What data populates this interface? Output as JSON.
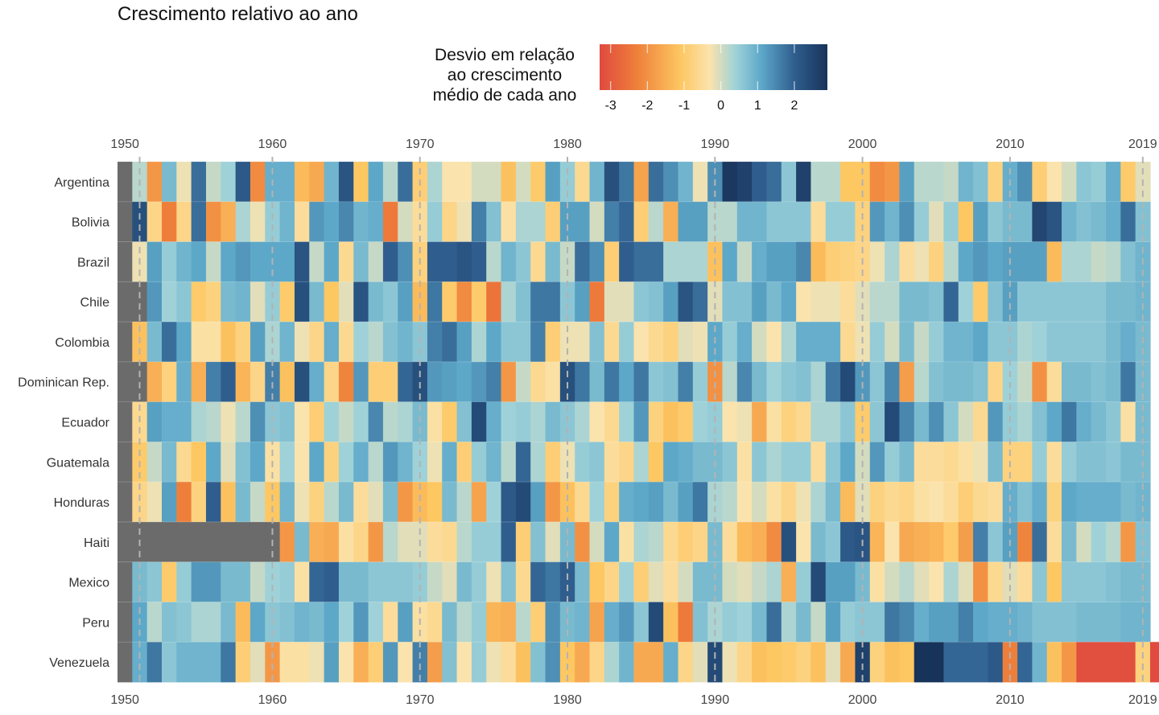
{
  "chart_data": {
    "type": "heatmap",
    "title": "Crescimento relativo ao ano",
    "legend": {
      "title_lines": [
        "Desvio em relação",
        "ao crescimento",
        "médio de cada ano"
      ],
      "ticks": [
        -3,
        -2,
        -1,
        0,
        1,
        2
      ],
      "range": [
        -3.3,
        2.9
      ],
      "colors": [
        "#e04a3f",
        "#ee7f3a",
        "#fdc762",
        "#fbe3ad",
        "#9fd2d8",
        "#5da8c9",
        "#2f5e8e",
        "#17335a"
      ],
      "placement": "top-center"
    },
    "na_color": "#6b6b6b",
    "x_ticks": [
      1950,
      1960,
      1970,
      1980,
      1990,
      2000,
      2010,
      2019
    ],
    "years_start": 1950,
    "years_end": 2019,
    "rows": [
      {
        "country": "Argentina",
        "values": [
          null,
          0.2,
          -1.9,
          0.8,
          -0.2,
          1.8,
          0.1,
          0.4,
          2.1,
          -2.1,
          1.0,
          1.0,
          -1.3,
          -1.6,
          0.9,
          2.2,
          -1.1,
          1.1,
          0.2,
          1.8,
          -0.9,
          0.3,
          -0.3,
          -0.3,
          0.0,
          0.0,
          -1.2,
          0.0,
          -1.0,
          1.2,
          0.5,
          -0.6,
          0.9,
          2.3,
          1.7,
          -1.7,
          1.8,
          1.4,
          0.9,
          -0.2,
          1.4,
          2.8,
          2.6,
          2.0,
          1.8,
          0.6,
          2.6,
          0.2,
          0.2,
          -1.1,
          -1.1,
          -2.1,
          -1.9,
          1.2,
          0.2,
          0.2,
          0.1,
          0.9,
          0.7,
          -0.8,
          1.0,
          1.4,
          -0.9,
          -0.3,
          0.0,
          0.6,
          0.5,
          1.0,
          -1.0,
          -0.1
        ]
      },
      {
        "country": "Bolivia",
        "values": [
          null,
          2.3,
          -0.7,
          -2.3,
          -0.7,
          1.8,
          -2.0,
          -1.5,
          0.3,
          -0.2,
          0.5,
          0.9,
          -0.5,
          1.3,
          1.1,
          1.5,
          0.9,
          1.0,
          -2.4,
          0.0,
          -0.5,
          0.5,
          -0.7,
          -0.2,
          1.6,
          0.7,
          -0.4,
          0.3,
          0.3,
          -0.9,
          1.2,
          1.2,
          0.0,
          1.6,
          1.9,
          -0.9,
          0.2,
          -1.5,
          1.2,
          1.2,
          0.2,
          0.2,
          0.9,
          0.9,
          0.6,
          0.6,
          0.6,
          -0.5,
          0.5,
          0.5,
          -0.8,
          1.3,
          0.9,
          1.4,
          0.5,
          -0.1,
          0.5,
          -1.1,
          1.2,
          0.6,
          0.8,
          0.8,
          2.5,
          2.2,
          0.9,
          0.7,
          0.8,
          1.0,
          1.8,
          0.7
        ]
      },
      {
        "country": "Brazil",
        "values": [
          null,
          -0.2,
          1.2,
          0.5,
          0.9,
          1.1,
          0.1,
          1.1,
          1.3,
          1.1,
          1.1,
          1.1,
          2.2,
          0.1,
          1.1,
          -0.6,
          0.8,
          0.1,
          2.0,
          1.4,
          -0.8,
          2.0,
          2.0,
          2.2,
          2.0,
          0.2,
          0.9,
          0.6,
          -0.6,
          0.8,
          0.1,
          1.8,
          1.4,
          -0.9,
          2.0,
          1.8,
          1.8,
          0.3,
          0.3,
          0.3,
          -1.2,
          1.1,
          0.1,
          1.0,
          1.2,
          1.2,
          1.5,
          -1.3,
          -0.9,
          -0.8,
          -0.7,
          -0.2,
          0.3,
          -0.5,
          -0.2,
          -0.8,
          0.2,
          1.1,
          1.3,
          1.1,
          1.2,
          1.2,
          1.2,
          -1.3,
          0.3,
          0.3,
          0.1,
          0.2,
          0.7,
          0.9
        ]
      },
      {
        "country": "Chile",
        "values": [
          null,
          null,
          1.3,
          0.4,
          0.6,
          -1.0,
          -0.8,
          0.8,
          0.9,
          -0.1,
          0.5,
          -1.0,
          2.3,
          0.8,
          -1.1,
          -0.1,
          2.2,
          0.8,
          0.6,
          1.2,
          -1.3,
          1.7,
          -1.0,
          -2.1,
          -1.0,
          -2.5,
          0.3,
          0.7,
          1.7,
          1.7,
          0.6,
          1.2,
          -2.4,
          -0.1,
          -0.1,
          0.6,
          0.7,
          1.2,
          2.2,
          1.8,
          -0.1,
          0.7,
          0.7,
          1.2,
          0.8,
          1.1,
          -0.3,
          -0.2,
          -0.2,
          -0.5,
          -0.1,
          0.2,
          0.2,
          0.8,
          0.8,
          0.7,
          1.9,
          0.4,
          -1.0,
          0.7,
          1.2,
          0.6,
          0.6,
          0.6,
          0.6,
          0.6,
          0.6,
          0.8,
          0.8,
          0.9
        ]
      },
      {
        "country": "Colombia",
        "values": [
          null,
          -1.2,
          0.8,
          1.8,
          1.1,
          -0.4,
          -0.4,
          -1.2,
          -0.8,
          1.2,
          0.3,
          0.9,
          -0.2,
          -0.7,
          1.0,
          -0.6,
          0.4,
          0.2,
          0.7,
          0.9,
          0.6,
          1.6,
          1.8,
          1.2,
          0.3,
          1.1,
          0.6,
          0.6,
          1.6,
          -0.9,
          -0.2,
          -0.2,
          0.7,
          -0.6,
          0.5,
          -0.3,
          -0.6,
          -0.8,
          -0.1,
          -0.2,
          1.1,
          0.5,
          1.0,
          0.0,
          -0.3,
          0.3,
          1.0,
          1.0,
          1.0,
          -0.6,
          -0.2,
          0.5,
          0.0,
          0.8,
          0.1,
          0.5,
          0.9,
          0.9,
          1.1,
          0.6,
          0.6,
          0.3,
          0.4,
          0.6,
          0.6,
          0.6,
          0.6,
          0.8,
          1.0,
          0.8
        ]
      },
      {
        "country": "Dominican Rep.",
        "values": [
          null,
          null,
          -1.5,
          -0.8,
          1.0,
          -1.5,
          1.6,
          2.0,
          -1.4,
          -0.7,
          1.6,
          -1.2,
          2.3,
          1.0,
          -0.7,
          -2.2,
          1.3,
          -0.9,
          -0.9,
          1.9,
          2.3,
          1.3,
          1.2,
          1.1,
          1.3,
          1.6,
          -1.9,
          0.1,
          -0.6,
          -0.4,
          2.3,
          1.7,
          0.8,
          1.7,
          1.1,
          1.7,
          0.6,
          0.7,
          1.6,
          0.5,
          -2.0,
          0.2,
          1.5,
          0.8,
          0.4,
          0.6,
          0.7,
          0.3,
          1.7,
          2.4,
          1.3,
          0.6,
          1.5,
          -1.8,
          0.2,
          0.7,
          0.8,
          0.8,
          0.7,
          -0.7,
          0.4,
          0.1,
          -2.0,
          -0.5,
          0.8,
          0.8,
          0.7,
          0.8,
          1.7,
          0.8
        ]
      },
      {
        "country": "Ecuador",
        "values": [
          null,
          -0.6,
          1.2,
          1.0,
          1.0,
          0.3,
          0.2,
          -0.2,
          0.2,
          1.4,
          0.6,
          0.7,
          -0.3,
          -0.9,
          0.4,
          0.1,
          0.4,
          1.5,
          0.2,
          0.3,
          0.8,
          -0.4,
          -1.0,
          0.7,
          2.4,
          1.0,
          0.4,
          0.5,
          0.3,
          0.8,
          0.6,
          0.3,
          -0.3,
          -0.6,
          0.4,
          1.3,
          -0.8,
          -1.2,
          -1.0,
          0.4,
          0.5,
          -0.3,
          -0.2,
          -1.6,
          -0.4,
          -0.8,
          -0.6,
          0.3,
          0.3,
          0.6,
          -1.0,
          0.6,
          2.4,
          1.5,
          0.8,
          1.4,
          0.6,
          0.0,
          -0.6,
          1.3,
          0.5,
          0.3,
          0.7,
          1.1,
          1.7,
          1.0,
          0.8,
          0.6,
          -0.4,
          0.8
        ]
      },
      {
        "country": "Guatemala",
        "values": [
          null,
          -1.0,
          0.1,
          0.8,
          -0.6,
          -1.1,
          1.1,
          -0.1,
          0.7,
          1.1,
          -0.4,
          0.4,
          -0.3,
          1.1,
          -0.8,
          0.4,
          1.0,
          0.2,
          1.3,
          0.9,
          0.4,
          -0.2,
          1.0,
          -0.9,
          0.5,
          0.9,
          0.2,
          1.9,
          0.3,
          -0.9,
          -0.2,
          0.5,
          0.6,
          -0.5,
          -0.7,
          0.3,
          -1.1,
          1.1,
          1.0,
          0.8,
          0.8,
          0.6,
          -0.4,
          0.6,
          0.3,
          0.5,
          0.5,
          -0.5,
          0.6,
          1.1,
          0.0,
          1.3,
          0.5,
          0.8,
          -0.5,
          -0.5,
          -0.6,
          -0.4,
          -0.2,
          0.8,
          -0.8,
          -0.8,
          0.5,
          -0.5,
          0.5,
          0.7,
          0.7,
          0.6,
          0.8,
          0.8
        ]
      },
      {
        "country": "Honduras",
        "values": [
          null,
          -0.7,
          -0.2,
          1.2,
          -2.3,
          -0.8,
          2.0,
          -1.2,
          0.8,
          0.1,
          -1.1,
          0.9,
          -0.2,
          -0.8,
          0.2,
          0.8,
          -0.5,
          -0.1,
          0.8,
          -1.9,
          -1.3,
          -1.1,
          0.8,
          0.2,
          -1.7,
          0.4,
          2.1,
          2.4,
          1.2,
          -1.9,
          -1.2,
          -0.6,
          0.4,
          -0.8,
          1.0,
          1.1,
          1.2,
          0.8,
          1.2,
          1.7,
          0.3,
          0.2,
          -0.3,
          0.0,
          -0.4,
          -0.7,
          -0.2,
          0.3,
          0.8,
          -1.3,
          -0.1,
          -0.8,
          -0.6,
          -0.7,
          -0.4,
          -0.3,
          -0.5,
          -0.9,
          -0.6,
          -0.5,
          1.0,
          0.7,
          1.0,
          -0.8,
          1.1,
          1.0,
          1.0,
          1.0,
          0.8,
          0.9
        ]
      },
      {
        "country": "Haiti",
        "values": [
          null,
          null,
          null,
          null,
          null,
          null,
          null,
          null,
          null,
          null,
          null,
          -1.9,
          0.8,
          -1.5,
          -1.6,
          -0.4,
          -0.7,
          -1.9,
          0.2,
          -0.1,
          -0.1,
          -0.5,
          -0.6,
          0.2,
          0.5,
          0.5,
          2.0,
          -0.9,
          0.7,
          -0.1,
          0.8,
          -2.0,
          0.0,
          1.1,
          -0.4,
          0.3,
          0.2,
          -0.6,
          -0.9,
          -0.7,
          0.8,
          -0.5,
          -1.3,
          -1.5,
          -2.1,
          2.3,
          -0.3,
          0.8,
          0.6,
          2.1,
          2.2,
          -1.4,
          -0.3,
          -1.6,
          -1.5,
          -1.4,
          -1.0,
          -1.8,
          1.6,
          0.6,
          1.2,
          -2.2,
          1.8,
          -0.5,
          0.8,
          0.0,
          0.4,
          0.2,
          -1.9,
          0.7
        ]
      },
      {
        "country": "Mexico",
        "values": [
          null,
          0.8,
          0.6,
          -1.0,
          0.5,
          1.3,
          1.3,
          0.8,
          0.8,
          0.1,
          0.4,
          0.5,
          -0.4,
          1.9,
          2.0,
          0.8,
          0.8,
          0.6,
          0.6,
          0.6,
          0.5,
          0.1,
          -0.1,
          0.8,
          0.5,
          -0.2,
          0.7,
          -0.6,
          1.9,
          1.7,
          2.0,
          0.8,
          -1.1,
          -0.7,
          0.4,
          -0.9,
          -0.1,
          -0.5,
          0.0,
          0.8,
          0.8,
          0.0,
          -0.1,
          0.1,
          0.3,
          -1.5,
          0.5,
          2.4,
          1.2,
          1.2,
          0.8,
          -0.4,
          0.0,
          0.2,
          -0.1,
          -0.3,
          0.3,
          -0.1,
          -2.0,
          -0.6,
          -0.1,
          -0.5,
          0.6,
          -1.1,
          0.6,
          0.6,
          0.6,
          0.7,
          0.8,
          0.8
        ]
      },
      {
        "country": "Peru",
        "values": [
          null,
          1.1,
          0.2,
          0.7,
          0.6,
          0.3,
          0.3,
          0.8,
          -1.3,
          1.1,
          0.6,
          0.7,
          0.9,
          0.8,
          1.1,
          0.4,
          1.3,
          0.4,
          -0.5,
          1.2,
          -0.4,
          -0.6,
          0.8,
          0.2,
          0.5,
          -1.4,
          -1.5,
          0.2,
          -0.9,
          1.4,
          0.8,
          0.9,
          -1.7,
          1.0,
          1.3,
          0.6,
          2.4,
          -1.2,
          -2.4,
          0.7,
          0.3,
          0.5,
          0.4,
          0.8,
          1.8,
          0.3,
          0.8,
          0.1,
          1.2,
          0.5,
          0.6,
          0.6,
          1.7,
          1.5,
          1.0,
          1.2,
          1.2,
          1.6,
          1.1,
          1.0,
          1.0,
          0.9,
          0.7,
          0.7,
          0.7,
          0.8,
          0.8,
          0.8,
          0.9,
          0.9
        ]
      },
      {
        "country": "Venezuela",
        "values": [
          null,
          1.0,
          1.7,
          0.6,
          0.9,
          0.9,
          0.9,
          1.7,
          -0.9,
          -0.1,
          -1.9,
          -0.4,
          -0.4,
          -0.2,
          1.2,
          -0.3,
          -1.5,
          -0.9,
          1.3,
          -0.3,
          1.6,
          -1.8,
          0.7,
          -0.3,
          0.5,
          -0.2,
          -0.5,
          -1.2,
          0.7,
          1.4,
          -1.1,
          -1.6,
          -0.7,
          0.3,
          0.9,
          -1.6,
          -1.6,
          1.0,
          -0.7,
          -0.1,
          2.4,
          -0.2,
          -0.7,
          -1.2,
          -1.1,
          -1.0,
          -0.8,
          -1.2,
          -0.1,
          -1.6,
          2.6,
          -0.8,
          -1.2,
          -1.1,
          2.9,
          2.9,
          1.9,
          1.9,
          1.9,
          2.1,
          -2.3,
          1.9,
          0.9,
          -1.2,
          -1.9,
          -3.2,
          -3.2,
          -3.2,
          -3.2,
          -0.8,
          -3.3
        ]
      }
    ]
  }
}
